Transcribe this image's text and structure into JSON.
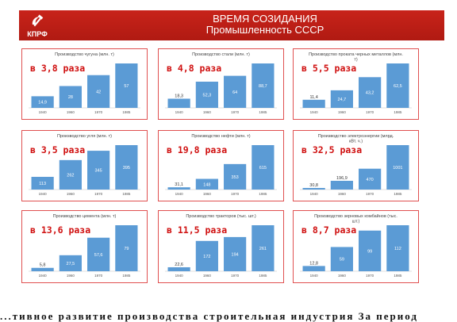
{
  "header": {
    "logo_text": "КПРФ",
    "title": "ВРЕМЯ СОЗИДАНИЯ",
    "subtitle": "Промышленность СССР"
  },
  "colors": {
    "header": "#c8231a",
    "bars": "#5b9bd5",
    "panel_border": "#e05050",
    "multiplier": "#d01010"
  },
  "icons": {
    "logo": "hammer-sickle-icon"
  },
  "chart_data": [
    {
      "type": "bar",
      "title": "Производство чугуна (млн. т)",
      "multiplier": "в 3,8 раза",
      "categories": [
        "1940",
        "1960",
        "1970",
        "1985"
      ],
      "values": [
        14.9,
        28,
        42,
        57
      ],
      "value_labels": [
        "14,9",
        "28",
        "42",
        "57"
      ]
    },
    {
      "type": "bar",
      "title": "Производство стали (млн. т)",
      "multiplier": "в 4,8 раза",
      "categories": [
        "1940",
        "1960",
        "1970",
        "1985"
      ],
      "values": [
        18.3,
        52.3,
        64,
        88.7
      ],
      "value_labels": [
        "18,3",
        "52,3",
        "64",
        "88,7"
      ]
    },
    {
      "type": "bar",
      "title": "Производство проката черных металлов (млн. т)",
      "multiplier": "в 5,5 раза",
      "categories": [
        "1940",
        "1960",
        "1970",
        "1985"
      ],
      "values": [
        11.4,
        24.7,
        43.2,
        62.5
      ],
      "value_labels": [
        "11,4",
        "24,7",
        "43,2",
        "62,5"
      ]
    },
    {
      "type": "bar",
      "title": "Производство угля (млн. т)",
      "multiplier": "в 3,5 раза",
      "categories": [
        "1940",
        "1960",
        "1970",
        "1985"
      ],
      "values": [
        113,
        262,
        345,
        395
      ],
      "value_labels": [
        "113",
        "262",
        "345",
        "395"
      ]
    },
    {
      "type": "bar",
      "title": "Производство нефти (млн. т)",
      "multiplier": "в 19,8 раза",
      "categories": [
        "1940",
        "1960",
        "1970",
        "1985"
      ],
      "values": [
        31.1,
        148,
        353,
        615
      ],
      "value_labels": [
        "31,1",
        "148",
        "353",
        "615"
      ]
    },
    {
      "type": "bar",
      "title": "Производство электроэнергии (млрд. кВт. ч.)",
      "multiplier": "в 32,5 раза",
      "categories": [
        "1940",
        "1960",
        "1970",
        "1985"
      ],
      "values": [
        30.8,
        196.9,
        470,
        1001
      ],
      "value_labels": [
        "30,8",
        "196,9",
        "470",
        "1001"
      ]
    },
    {
      "type": "bar",
      "title": "Производство цемента (млн. т)",
      "multiplier": "в 13,6 раза",
      "categories": [
        "1940",
        "1960",
        "1970",
        "1985"
      ],
      "values": [
        5.8,
        27.5,
        57.6,
        79
      ],
      "value_labels": [
        "5,8",
        "27,5",
        "57,6",
        "79"
      ]
    },
    {
      "type": "bar",
      "title": "Производство тракторов (тыс. шт.)",
      "multiplier": "в 11,5 раза",
      "categories": [
        "1940",
        "1960",
        "1970",
        "1985"
      ],
      "values": [
        22.6,
        172,
        194,
        261
      ],
      "value_labels": [
        "22,6",
        "172",
        "194",
        "261"
      ]
    },
    {
      "type": "bar",
      "title": "Производство зерновых комбайнов (тыс. шт.)",
      "multiplier": "в 8,7 раза",
      "categories": [
        "1940",
        "1960",
        "1970",
        "1985"
      ],
      "values": [
        12.8,
        59,
        99,
        112
      ],
      "value_labels": [
        "12,8",
        "59",
        "99",
        "112"
      ]
    }
  ],
  "bottom_text": "...тивное развитие производства строительная индустрия За период"
}
